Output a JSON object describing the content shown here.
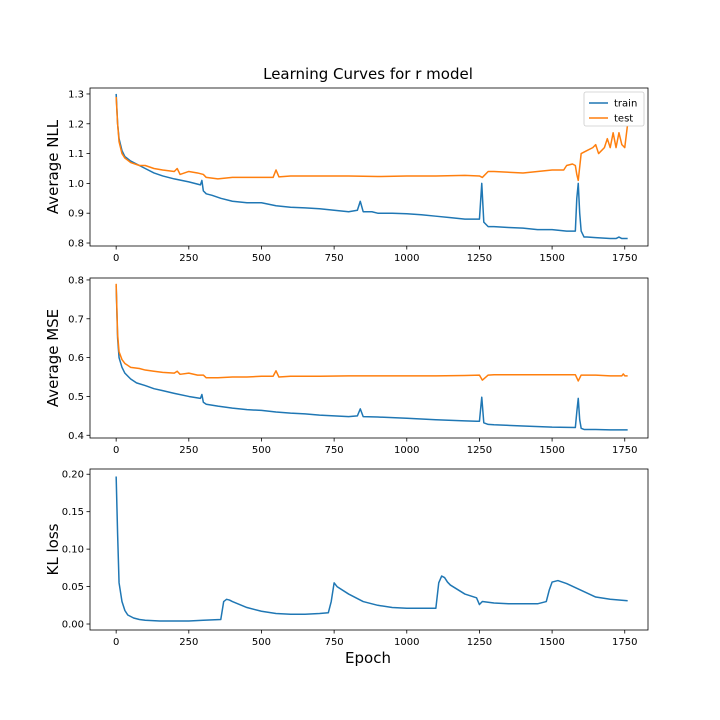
{
  "figure": {
    "title": "Learning Curves for r model",
    "xlabel": "Epoch"
  },
  "colors": {
    "train": "#1f77b4",
    "test": "#ff7f0e",
    "axes": "#000000",
    "background": "#ffffff"
  },
  "chart_data": [
    {
      "type": "line",
      "title": "Learning Curves for r model",
      "xlabel": "",
      "ylabel": "Average NLL",
      "xlim": [
        -90,
        1830
      ],
      "ylim": [
        0.79,
        1.32
      ],
      "xticks": [
        0,
        250,
        500,
        750,
        1000,
        1250,
        1500,
        1750
      ],
      "xtick_labels": [
        "0",
        "250",
        "500",
        "750",
        "1000",
        "1250",
        "1500",
        "1750"
      ],
      "yticks": [
        0.8,
        0.9,
        1.0,
        1.1,
        1.2,
        1.3
      ],
      "ytick_labels": [
        "0.8",
        "0.9",
        "1.0",
        "1.1",
        "1.2",
        "1.3"
      ],
      "grid": false,
      "legend": "top-right",
      "series": [
        {
          "name": "train",
          "color": "#1f77b4",
          "x": [
            0,
            5,
            10,
            20,
            30,
            50,
            70,
            100,
            130,
            160,
            200,
            250,
            290,
            295,
            300,
            310,
            330,
            360,
            400,
            450,
            500,
            550,
            600,
            650,
            700,
            750,
            800,
            830,
            840,
            850,
            880,
            900,
            950,
            1000,
            1050,
            1100,
            1150,
            1200,
            1240,
            1250,
            1258,
            1265,
            1280,
            1300,
            1350,
            1400,
            1450,
            1500,
            1550,
            1580,
            1585,
            1590,
            1595,
            1600,
            1610,
            1620,
            1650,
            1700,
            1720,
            1730,
            1740,
            1760
          ],
          "y": [
            1.3,
            1.2,
            1.15,
            1.11,
            1.09,
            1.075,
            1.065,
            1.05,
            1.035,
            1.025,
            1.015,
            1.005,
            0.995,
            1.01,
            0.975,
            0.965,
            0.96,
            0.95,
            0.94,
            0.935,
            0.935,
            0.925,
            0.92,
            0.918,
            0.915,
            0.91,
            0.905,
            0.91,
            0.94,
            0.905,
            0.905,
            0.9,
            0.9,
            0.898,
            0.895,
            0.89,
            0.885,
            0.88,
            0.88,
            0.88,
            1.0,
            0.87,
            0.855,
            0.855,
            0.852,
            0.85,
            0.845,
            0.845,
            0.84,
            0.84,
            0.95,
            1.0,
            0.9,
            0.84,
            0.82,
            0.82,
            0.818,
            0.815,
            0.815,
            0.82,
            0.815,
            0.815
          ]
        },
        {
          "name": "test",
          "color": "#ff7f0e",
          "x": [
            0,
            5,
            10,
            20,
            30,
            50,
            80,
            100,
            130,
            160,
            200,
            210,
            220,
            250,
            280,
            300,
            310,
            350,
            400,
            450,
            500,
            540,
            550,
            560,
            600,
            650,
            700,
            750,
            800,
            900,
            1000,
            1100,
            1200,
            1250,
            1260,
            1280,
            1300,
            1400,
            1450,
            1500,
            1540,
            1550,
            1570,
            1580,
            1585,
            1590,
            1600,
            1620,
            1640,
            1650,
            1660,
            1680,
            1690,
            1700,
            1710,
            1720,
            1730,
            1740,
            1750,
            1760
          ],
          "y": [
            1.29,
            1.2,
            1.14,
            1.1,
            1.085,
            1.07,
            1.06,
            1.06,
            1.05,
            1.045,
            1.04,
            1.05,
            1.03,
            1.04,
            1.035,
            1.03,
            1.02,
            1.015,
            1.02,
            1.02,
            1.02,
            1.02,
            1.045,
            1.022,
            1.025,
            1.025,
            1.025,
            1.025,
            1.025,
            1.023,
            1.025,
            1.025,
            1.027,
            1.025,
            1.02,
            1.04,
            1.04,
            1.035,
            1.04,
            1.045,
            1.045,
            1.06,
            1.065,
            1.06,
            1.03,
            1.01,
            1.1,
            1.11,
            1.12,
            1.13,
            1.1,
            1.12,
            1.15,
            1.12,
            1.17,
            1.12,
            1.17,
            1.13,
            1.12,
            1.2
          ]
        }
      ]
    },
    {
      "type": "line",
      "xlabel": "",
      "ylabel": "Average MSE",
      "xlim": [
        -90,
        1830
      ],
      "ylim": [
        0.393,
        0.805
      ],
      "xticks": [
        0,
        250,
        500,
        750,
        1000,
        1250,
        1500,
        1750
      ],
      "xtick_labels": [
        "0",
        "250",
        "500",
        "750",
        "1000",
        "1250",
        "1500",
        "1750"
      ],
      "yticks": [
        0.4,
        0.5,
        0.6,
        0.7,
        0.8
      ],
      "ytick_labels": [
        "0.4",
        "0.5",
        "0.6",
        "0.7",
        "0.8"
      ],
      "grid": false,
      "series": [
        {
          "name": "train",
          "color": "#1f77b4",
          "x": [
            0,
            5,
            10,
            20,
            30,
            50,
            70,
            100,
            130,
            160,
            200,
            250,
            290,
            295,
            300,
            310,
            350,
            400,
            450,
            500,
            550,
            600,
            650,
            700,
            750,
            800,
            830,
            840,
            850,
            900,
            1000,
            1100,
            1200,
            1240,
            1250,
            1258,
            1265,
            1280,
            1300,
            1400,
            1500,
            1580,
            1585,
            1590,
            1595,
            1600,
            1610,
            1650,
            1700,
            1760
          ],
          "y": [
            0.785,
            0.65,
            0.6,
            0.575,
            0.56,
            0.545,
            0.535,
            0.528,
            0.52,
            0.515,
            0.508,
            0.5,
            0.495,
            0.505,
            0.485,
            0.48,
            0.475,
            0.47,
            0.466,
            0.464,
            0.46,
            0.457,
            0.455,
            0.452,
            0.45,
            0.448,
            0.45,
            0.468,
            0.448,
            0.447,
            0.444,
            0.44,
            0.437,
            0.436,
            0.436,
            0.498,
            0.432,
            0.428,
            0.427,
            0.424,
            0.421,
            0.42,
            0.46,
            0.495,
            0.44,
            0.418,
            0.415,
            0.415,
            0.414,
            0.414
          ]
        },
        {
          "name": "test",
          "color": "#ff7f0e",
          "x": [
            0,
            5,
            10,
            20,
            30,
            50,
            80,
            100,
            130,
            160,
            200,
            210,
            220,
            250,
            280,
            300,
            310,
            350,
            400,
            450,
            500,
            540,
            550,
            560,
            600,
            700,
            800,
            900,
            1000,
            1100,
            1200,
            1250,
            1260,
            1280,
            1300,
            1400,
            1500,
            1580,
            1590,
            1600,
            1650,
            1700,
            1740,
            1745,
            1750,
            1760
          ],
          "y": [
            0.79,
            0.66,
            0.615,
            0.595,
            0.585,
            0.575,
            0.572,
            0.568,
            0.565,
            0.562,
            0.56,
            0.565,
            0.557,
            0.56,
            0.555,
            0.555,
            0.548,
            0.548,
            0.55,
            0.55,
            0.552,
            0.552,
            0.566,
            0.55,
            0.552,
            0.552,
            0.553,
            0.553,
            0.553,
            0.553,
            0.554,
            0.555,
            0.542,
            0.555,
            0.556,
            0.556,
            0.556,
            0.556,
            0.54,
            0.555,
            0.555,
            0.553,
            0.553,
            0.558,
            0.553,
            0.553
          ]
        }
      ]
    },
    {
      "type": "line",
      "xlabel": "Epoch",
      "ylabel": "KL loss",
      "xlim": [
        -90,
        1830
      ],
      "ylim": [
        -0.008,
        0.207
      ],
      "xticks": [
        0,
        250,
        500,
        750,
        1000,
        1250,
        1500,
        1750
      ],
      "xtick_labels": [
        "0",
        "250",
        "500",
        "750",
        "1000",
        "1250",
        "1500",
        "1750"
      ],
      "yticks": [
        0.0,
        0.05,
        0.1,
        0.15,
        0.2
      ],
      "ytick_labels": [
        "0.00",
        "0.05",
        "0.10",
        "0.15",
        "0.20"
      ],
      "grid": false,
      "series": [
        {
          "name": "train",
          "color": "#1f77b4",
          "x": [
            0,
            5,
            10,
            20,
            30,
            40,
            50,
            60,
            80,
            100,
            150,
            200,
            250,
            300,
            360,
            370,
            380,
            390,
            400,
            450,
            500,
            550,
            600,
            650,
            700,
            730,
            740,
            750,
            760,
            800,
            850,
            900,
            950,
            1000,
            1050,
            1100,
            1110,
            1120,
            1130,
            1140,
            1150,
            1200,
            1240,
            1250,
            1260,
            1300,
            1350,
            1400,
            1450,
            1480,
            1490,
            1500,
            1520,
            1550,
            1600,
            1650,
            1700,
            1760
          ],
          "y": [
            0.197,
            0.12,
            0.055,
            0.03,
            0.018,
            0.012,
            0.01,
            0.008,
            0.006,
            0.005,
            0.004,
            0.004,
            0.004,
            0.005,
            0.006,
            0.03,
            0.033,
            0.032,
            0.03,
            0.022,
            0.017,
            0.014,
            0.013,
            0.013,
            0.014,
            0.015,
            0.03,
            0.055,
            0.05,
            0.04,
            0.03,
            0.025,
            0.022,
            0.021,
            0.021,
            0.021,
            0.055,
            0.064,
            0.062,
            0.056,
            0.052,
            0.04,
            0.035,
            0.026,
            0.03,
            0.028,
            0.027,
            0.027,
            0.027,
            0.03,
            0.045,
            0.056,
            0.058,
            0.054,
            0.045,
            0.036,
            0.033,
            0.031
          ]
        }
      ]
    }
  ]
}
